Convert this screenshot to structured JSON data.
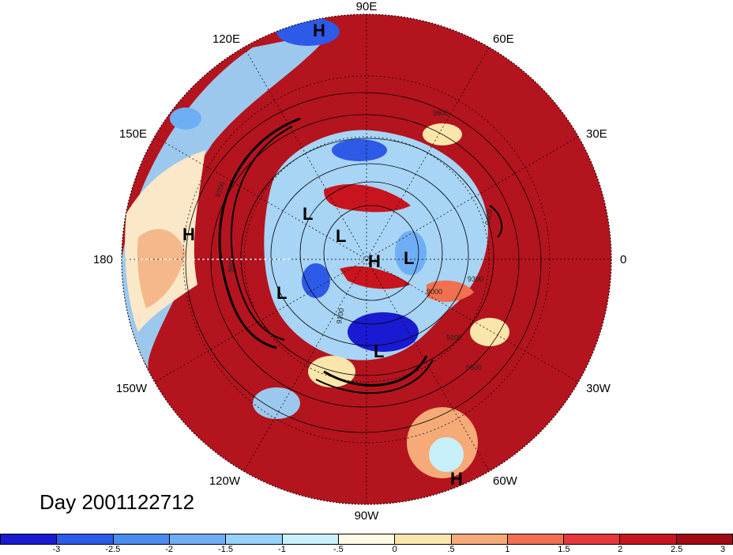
{
  "map": {
    "longitude_labels": [
      "90E",
      "60E",
      "30E",
      "0",
      "30W",
      "60W",
      "90W",
      "120W",
      "150W",
      "180",
      "150E",
      "120E"
    ],
    "pressure_centers": [
      "H",
      "H",
      "L",
      "L",
      "H",
      "L",
      "L",
      "L",
      "H"
    ],
    "contour_labels": [
      "9600",
      "9700",
      "9800",
      "9500",
      "9400",
      "9300",
      "9200",
      "9100",
      "9000"
    ],
    "day_label": "Day 2001122712"
  },
  "colorbar": {
    "colors": [
      "#1a1ad2",
      "#2d5ae6",
      "#4b8cf0",
      "#6eaef5",
      "#96d2fa",
      "#c8f0fa",
      "#fffae6",
      "#fae6aa",
      "#f5aa78",
      "#f07050",
      "#e6373c",
      "#c8141e",
      "#a00a14"
    ],
    "tick_labels": [
      "-3",
      "-2.5",
      "-2",
      "-1.5",
      "-1",
      "-.5",
      "0",
      ".5",
      "1",
      "1.5",
      "2",
      "2.5",
      "3"
    ]
  }
}
